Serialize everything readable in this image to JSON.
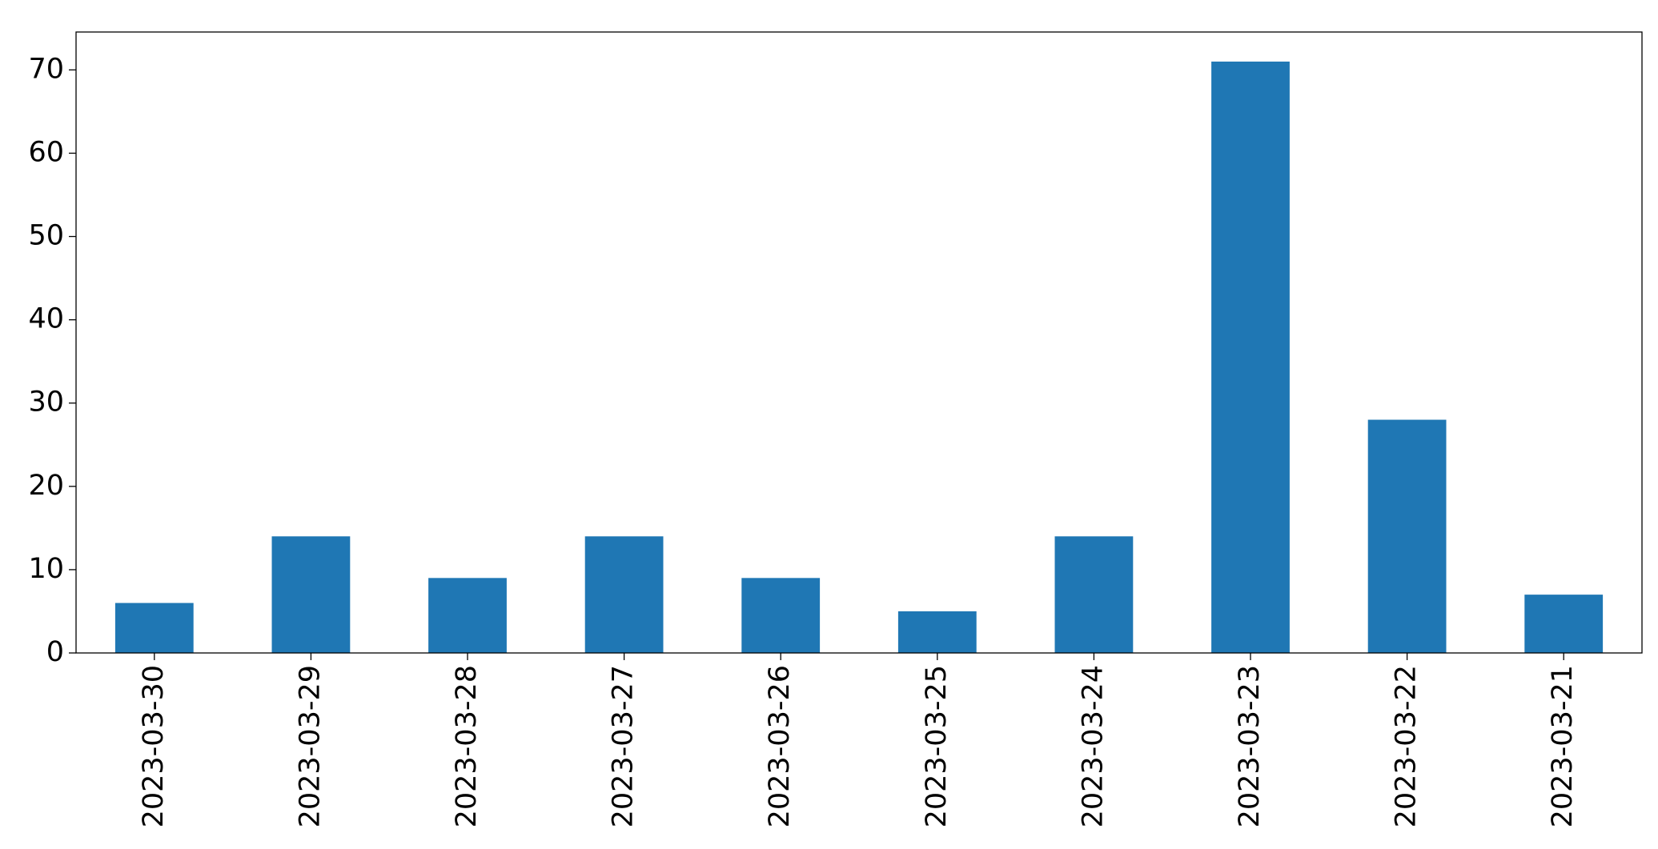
{
  "chart_data": {
    "type": "bar",
    "categories": [
      "2023-03-30",
      "2023-03-29",
      "2023-03-28",
      "2023-03-27",
      "2023-03-26",
      "2023-03-25",
      "2023-03-24",
      "2023-03-23",
      "2023-03-22",
      "2023-03-21"
    ],
    "values": [
      6,
      14,
      9,
      14,
      9,
      5,
      14,
      71,
      28,
      7
    ],
    "color": "#1f77b4",
    "ylim": [
      0,
      74.55
    ],
    "yticks": [
      0,
      10,
      20,
      30,
      40,
      50,
      60,
      70
    ],
    "grid": false
  }
}
